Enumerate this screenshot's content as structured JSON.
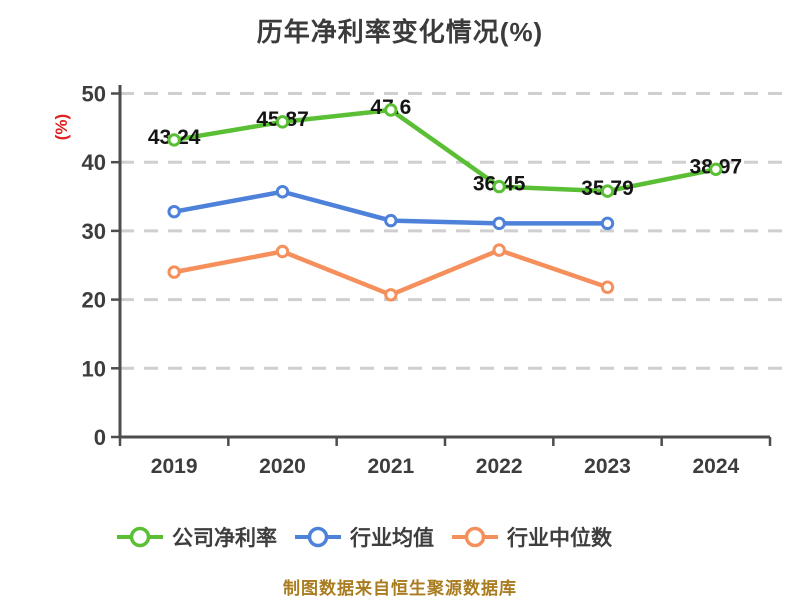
{
  "title": "历年净利率变化情况(%)",
  "y_axis_label": "(%)",
  "footer_note": "制图数据来自恒生聚源数据库",
  "colors": {
    "title_text": "#3b3b3b",
    "axis": "#4d4d4d",
    "tick_text": "#3d3d3d",
    "gridline": "#cfcfcf",
    "y_axis_label_red": "#e02020",
    "footer_gold": "#aa7c20",
    "point_label_text": "#141414",
    "series_green": "#5abf35",
    "series_blue": "#4e81d9",
    "series_orange": "#f5905d"
  },
  "chart_data": {
    "type": "line",
    "title": "历年净利率变化情况(%)",
    "ylabel": "(%)",
    "categories": [
      "2019",
      "2020",
      "2021",
      "2022",
      "2023",
      "2024"
    ],
    "series": [
      {
        "name": "公司净利率",
        "color": "#5abf35",
        "values": [
          43.24,
          45.87,
          47.6,
          36.45,
          35.79,
          38.97
        ],
        "point_labels": [
          "43.24",
          "45.87",
          "47.6",
          "36.45",
          "35.79",
          "38.97"
        ]
      },
      {
        "name": "行业均值",
        "color": "#4e81d9",
        "values": [
          32.8,
          35.7,
          31.5,
          31.1,
          31.1
        ],
        "point_labels": []
      },
      {
        "name": "行业中位数",
        "color": "#f5905d",
        "values": [
          24,
          27,
          20.7,
          27.2,
          21.8
        ],
        "point_labels": []
      }
    ],
    "ylim": [
      0,
      50
    ],
    "yticks": [
      0,
      10,
      20,
      30,
      40,
      50
    ],
    "grid": "horizontal-dashed",
    "legend_position": "bottom",
    "marker": "white-filled-circle"
  }
}
